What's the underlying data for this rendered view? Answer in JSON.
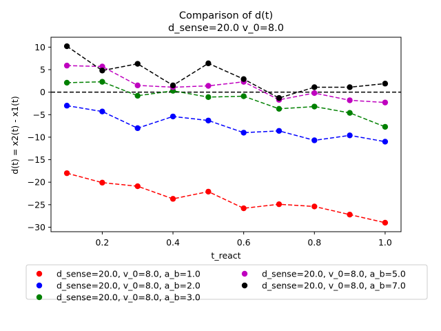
{
  "chart_data": {
    "type": "line",
    "title": "Comparison of d(t)",
    "subtitle": "d_sense=20.0 v_0=8.0",
    "xlabel": "t_react",
    "ylabel": "d(t) = x2(t) - x1(t)",
    "xlim": [
      0.055,
      1.045
    ],
    "ylim": [
      -31.0,
      12.2
    ],
    "xticks": [
      0.2,
      0.4,
      0.6,
      0.8,
      1.0
    ],
    "xtick_labels": [
      "0.2",
      "0.4",
      "0.6",
      "0.8",
      "1.0"
    ],
    "yticks": [
      10,
      5,
      0,
      -5,
      -10,
      -15,
      -20,
      -25,
      -30
    ],
    "ytick_labels": [
      "10",
      "5",
      "0",
      "−5",
      "−10",
      "−15",
      "−20",
      "−25",
      "−30"
    ],
    "x": [
      0.1,
      0.2,
      0.3,
      0.4,
      0.5,
      0.6,
      0.7,
      0.8,
      0.9,
      1.0
    ],
    "zero_line": 0,
    "grid": false,
    "legend_position": "below",
    "series": [
      {
        "name": "d_sense=20.0, v_0=8.0, a_b=1.0",
        "color": "#ff0000",
        "values": [
          -18.0,
          -20.1,
          -20.9,
          -23.7,
          -22.1,
          -25.8,
          -24.9,
          -25.4,
          -27.2,
          -29.0
        ]
      },
      {
        "name": "d_sense=20.0, v_0=8.0, a_b=2.0",
        "color": "#0000ff",
        "values": [
          -3.0,
          -4.3,
          -8.0,
          -5.4,
          -6.3,
          -9.0,
          -8.6,
          -10.7,
          -9.6,
          -11.0
        ]
      },
      {
        "name": "d_sense=20.0, v_0=8.0, a_b=3.0",
        "color": "#008000",
        "values": [
          2.1,
          2.3,
          -0.8,
          0.3,
          -1.1,
          -0.9,
          -3.7,
          -3.2,
          -4.6,
          -7.7
        ]
      },
      {
        "name": "d_sense=20.0, v_0=8.0, a_b=5.0",
        "color": "#bf00bf",
        "values": [
          5.9,
          5.7,
          1.5,
          1.1,
          1.4,
          2.3,
          -1.7,
          -0.2,
          -1.8,
          -2.3
        ]
      },
      {
        "name": "d_sense=20.0, v_0=8.0, a_b=7.0",
        "color": "#000000",
        "values": [
          10.2,
          4.8,
          6.3,
          1.5,
          6.4,
          2.9,
          -1.3,
          1.1,
          1.1,
          1.9
        ]
      }
    ]
  }
}
